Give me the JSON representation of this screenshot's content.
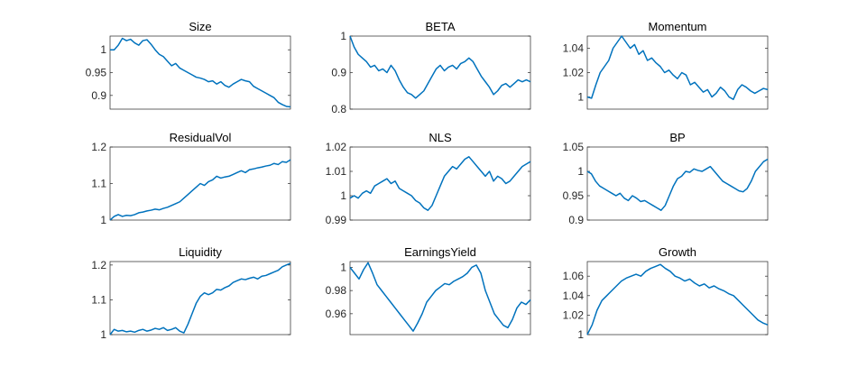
{
  "chart_data": [
    {
      "type": "line",
      "title": "Size",
      "xlabel": "",
      "ylabel": "",
      "ylim": [
        0.87,
        1.03
      ],
      "yticks": [
        0.9,
        0.95,
        1
      ],
      "ytick_labels": [
        "0.9",
        "0.95",
        "1"
      ],
      "grid": false,
      "color": "#0072BD",
      "series": [
        {
          "values": [
            1.0,
            1.0,
            1.01,
            1.025,
            1.02,
            1.023,
            1.015,
            1.01,
            1.02,
            1.022,
            1.012,
            1.0,
            0.99,
            0.985,
            0.975,
            0.965,
            0.97,
            0.96,
            0.955,
            0.95,
            0.945,
            0.94,
            0.938,
            0.935,
            0.93,
            0.932,
            0.925,
            0.93,
            0.922,
            0.918,
            0.925,
            0.93,
            0.935,
            0.932,
            0.93,
            0.92,
            0.915,
            0.91,
            0.905,
            0.9,
            0.895,
            0.885,
            0.88,
            0.876,
            0.875
          ]
        }
      ]
    },
    {
      "type": "line",
      "title": "BETA",
      "xlabel": "",
      "ylabel": "",
      "ylim": [
        0.8,
        1.0
      ],
      "yticks": [
        0.8,
        0.9,
        1
      ],
      "ytick_labels": [
        "0.8",
        "0.9",
        "1"
      ],
      "grid": false,
      "color": "#0072BD",
      "series": [
        {
          "values": [
            1.0,
            0.97,
            0.95,
            0.94,
            0.93,
            0.915,
            0.92,
            0.905,
            0.91,
            0.9,
            0.92,
            0.905,
            0.88,
            0.86,
            0.845,
            0.84,
            0.83,
            0.84,
            0.85,
            0.87,
            0.89,
            0.91,
            0.92,
            0.905,
            0.915,
            0.92,
            0.91,
            0.925,
            0.93,
            0.94,
            0.93,
            0.91,
            0.89,
            0.875,
            0.86,
            0.84,
            0.85,
            0.865,
            0.87,
            0.86,
            0.87,
            0.88,
            0.875,
            0.88,
            0.875
          ]
        }
      ]
    },
    {
      "type": "line",
      "title": "Momentum",
      "xlabel": "",
      "ylabel": "",
      "ylim": [
        0.99,
        1.05
      ],
      "yticks": [
        1,
        1.02,
        1.04
      ],
      "ytick_labels": [
        "1",
        "1.02",
        "1.04"
      ],
      "grid": false,
      "color": "#0072BD",
      "series": [
        {
          "values": [
            1.0,
            0.999,
            1.01,
            1.02,
            1.025,
            1.03,
            1.04,
            1.045,
            1.05,
            1.045,
            1.04,
            1.043,
            1.035,
            1.038,
            1.03,
            1.032,
            1.028,
            1.025,
            1.02,
            1.022,
            1.018,
            1.015,
            1.02,
            1.018,
            1.01,
            1.012,
            1.008,
            1.004,
            1.006,
            1.0,
            1.003,
            1.008,
            1.005,
            1.0,
            0.998,
            1.006,
            1.01,
            1.008,
            1.005,
            1.003,
            1.005,
            1.007,
            1.006
          ]
        }
      ]
    },
    {
      "type": "line",
      "title": "ResidualVol",
      "xlabel": "",
      "ylabel": "",
      "ylim": [
        1.0,
        1.2
      ],
      "yticks": [
        1,
        1.1,
        1.2
      ],
      "ytick_labels": [
        "1",
        "1.1",
        "1.2"
      ],
      "grid": false,
      "color": "#0072BD",
      "series": [
        {
          "values": [
            1.0,
            1.01,
            1.015,
            1.01,
            1.013,
            1.012,
            1.015,
            1.02,
            1.022,
            1.025,
            1.027,
            1.03,
            1.028,
            1.032,
            1.035,
            1.04,
            1.045,
            1.05,
            1.06,
            1.07,
            1.08,
            1.09,
            1.1,
            1.095,
            1.105,
            1.11,
            1.12,
            1.115,
            1.118,
            1.12,
            1.125,
            1.13,
            1.135,
            1.13,
            1.138,
            1.14,
            1.143,
            1.145,
            1.148,
            1.15,
            1.155,
            1.152,
            1.16,
            1.158,
            1.165
          ]
        }
      ]
    },
    {
      "type": "line",
      "title": "NLS",
      "xlabel": "",
      "ylabel": "",
      "ylim": [
        0.99,
        1.02
      ],
      "yticks": [
        0.99,
        1,
        1.01,
        1.02
      ],
      "ytick_labels": [
        "0.99",
        "1",
        "1.01",
        "1.02"
      ],
      "grid": false,
      "color": "#0072BD",
      "series": [
        {
          "values": [
            0.999,
            1.0,
            0.999,
            1.001,
            1.002,
            1.001,
            1.004,
            1.005,
            1.006,
            1.007,
            1.005,
            1.006,
            1.003,
            1.002,
            1.001,
            1.0,
            0.998,
            0.997,
            0.995,
            0.994,
            0.996,
            1.0,
            1.004,
            1.008,
            1.01,
            1.012,
            1.011,
            1.013,
            1.015,
            1.016,
            1.014,
            1.012,
            1.01,
            1.008,
            1.01,
            1.006,
            1.008,
            1.007,
            1.005,
            1.006,
            1.008,
            1.01,
            1.012,
            1.013,
            1.014
          ]
        }
      ]
    },
    {
      "type": "line",
      "title": "BP",
      "xlabel": "",
      "ylabel": "",
      "ylim": [
        0.9,
        1.05
      ],
      "yticks": [
        0.9,
        0.95,
        1,
        1.05
      ],
      "ytick_labels": [
        "0.9",
        "0.95",
        "1",
        "1.05"
      ],
      "grid": false,
      "color": "#0072BD",
      "series": [
        {
          "values": [
            1.0,
            0.995,
            0.98,
            0.97,
            0.965,
            0.96,
            0.955,
            0.95,
            0.955,
            0.945,
            0.94,
            0.95,
            0.945,
            0.938,
            0.94,
            0.935,
            0.93,
            0.925,
            0.92,
            0.93,
            0.95,
            0.97,
            0.985,
            0.99,
            1.0,
            0.998,
            1.005,
            1.002,
            1.0,
            1.005,
            1.01,
            1.0,
            0.99,
            0.98,
            0.975,
            0.97,
            0.965,
            0.96,
            0.958,
            0.965,
            0.98,
            1.0,
            1.01,
            1.02,
            1.025
          ]
        }
      ]
    },
    {
      "type": "line",
      "title": "Liquidity",
      "xlabel": "",
      "ylabel": "",
      "ylim": [
        1.0,
        1.21
      ],
      "yticks": [
        1,
        1.1,
        1.2
      ],
      "ytick_labels": [
        "1",
        "1.1",
        "1.2"
      ],
      "grid": false,
      "color": "#0072BD",
      "series": [
        {
          "values": [
            1.0,
            1.015,
            1.01,
            1.012,
            1.008,
            1.01,
            1.007,
            1.012,
            1.015,
            1.01,
            1.013,
            1.018,
            1.015,
            1.02,
            1.012,
            1.015,
            1.02,
            1.01,
            1.005,
            1.03,
            1.06,
            1.09,
            1.11,
            1.12,
            1.115,
            1.12,
            1.13,
            1.128,
            1.135,
            1.14,
            1.15,
            1.155,
            1.16,
            1.158,
            1.162,
            1.165,
            1.16,
            1.168,
            1.17,
            1.175,
            1.18,
            1.185,
            1.195,
            1.2,
            1.205
          ]
        }
      ]
    },
    {
      "type": "line",
      "title": "EarningsYield",
      "xlabel": "",
      "ylabel": "",
      "ylim": [
        0.942,
        1.005
      ],
      "yticks": [
        0.96,
        0.98,
        1
      ],
      "ytick_labels": [
        "0.96",
        "0.98",
        "1"
      ],
      "grid": false,
      "color": "#0072BD",
      "series": [
        {
          "values": [
            1.0,
            0.995,
            0.99,
            0.998,
            1.004,
            0.995,
            0.985,
            0.98,
            0.975,
            0.97,
            0.965,
            0.96,
            0.955,
            0.95,
            0.945,
            0.952,
            0.96,
            0.97,
            0.975,
            0.98,
            0.983,
            0.986,
            0.985,
            0.988,
            0.99,
            0.992,
            0.995,
            1.0,
            1.002,
            0.995,
            0.98,
            0.97,
            0.96,
            0.955,
            0.95,
            0.948,
            0.955,
            0.965,
            0.97,
            0.968,
            0.972
          ]
        }
      ]
    },
    {
      "type": "line",
      "title": "Growth",
      "xlabel": "",
      "ylabel": "",
      "ylim": [
        1.0,
        1.075
      ],
      "yticks": [
        1,
        1.02,
        1.04,
        1.06
      ],
      "ytick_labels": [
        "1",
        "1.02",
        "1.04",
        "1.06"
      ],
      "grid": false,
      "color": "#0072BD",
      "series": [
        {
          "values": [
            1.0,
            1.01,
            1.025,
            1.035,
            1.04,
            1.045,
            1.05,
            1.055,
            1.058,
            1.06,
            1.062,
            1.06,
            1.065,
            1.068,
            1.07,
            1.072,
            1.068,
            1.065,
            1.06,
            1.058,
            1.055,
            1.057,
            1.053,
            1.05,
            1.052,
            1.048,
            1.05,
            1.047,
            1.045,
            1.042,
            1.04,
            1.035,
            1.03,
            1.025,
            1.02,
            1.015,
            1.012,
            1.01
          ]
        }
      ]
    }
  ]
}
